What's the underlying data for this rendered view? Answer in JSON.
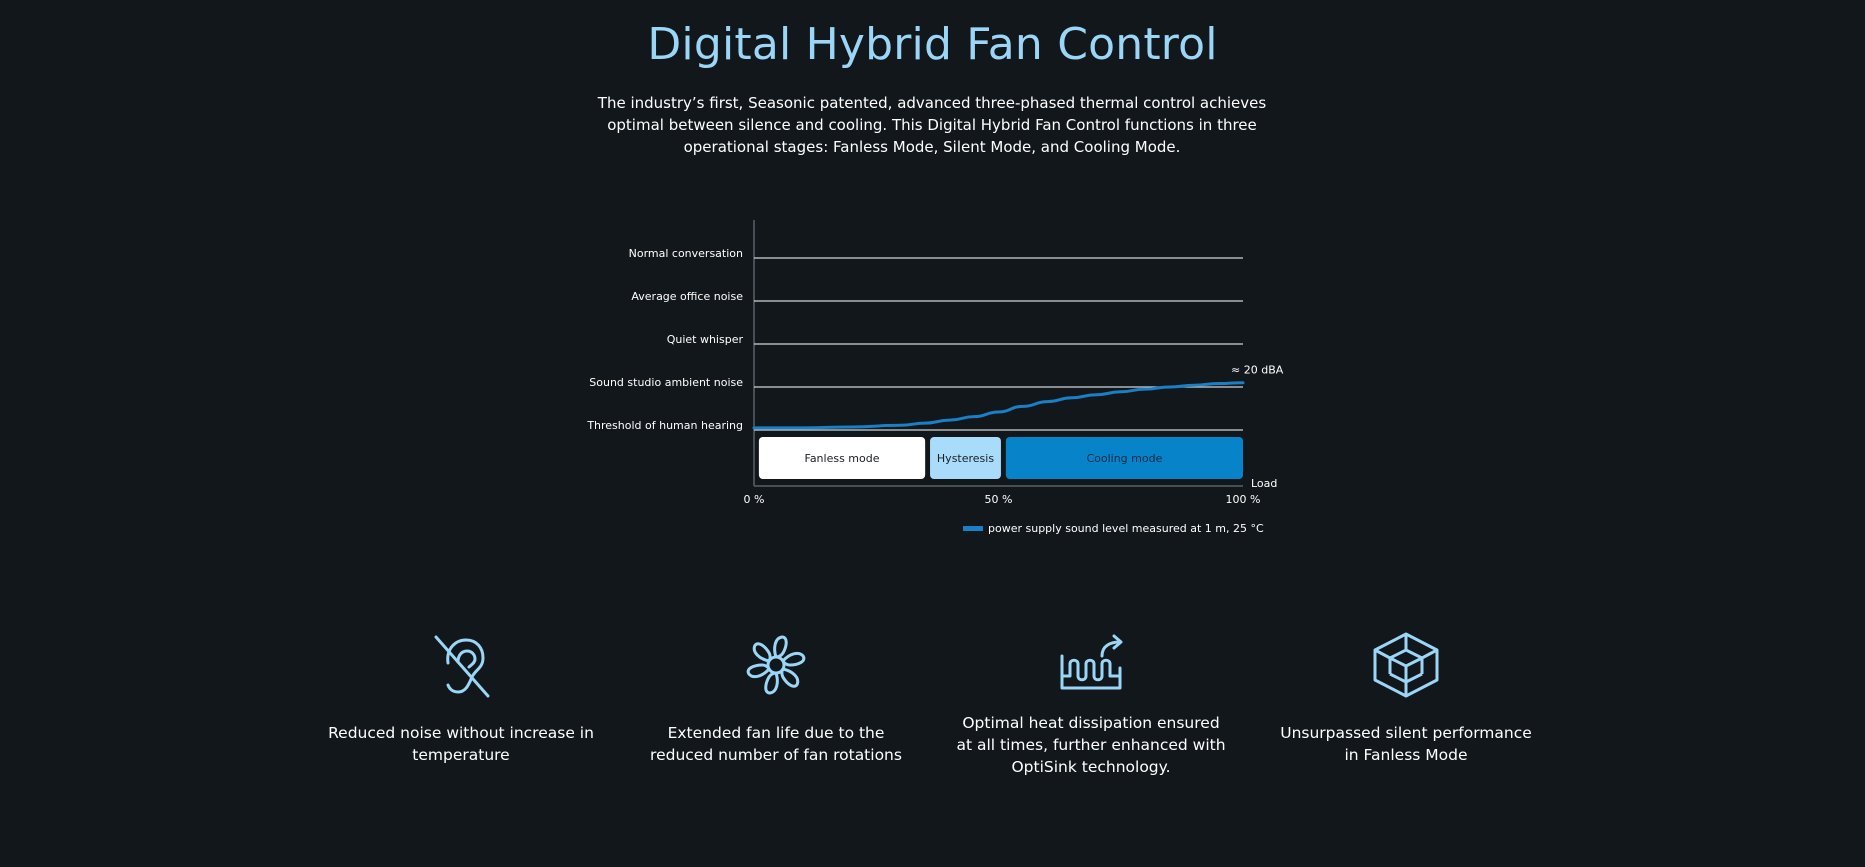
{
  "header": {
    "title": "Digital Hybrid Fan Control",
    "intro": "The industry’s first, Seasonic patented, advanced three-phased thermal control achieves optimal between silence and cooling. This Digital Hybrid Fan Control functions in three operational stages: Fanless Mode, Silent Mode, and Cooling Mode."
  },
  "chart_data": {
    "type": "line",
    "title": "",
    "xlabel": "Load",
    "ylabel": "",
    "x_ticks": [
      "0 %",
      "50 %",
      "100 %"
    ],
    "xlim": [
      0,
      100
    ],
    "y_levels": [
      "Threshold of human hearing",
      "Sound studio ambient noise",
      "Quiet whisper",
      "Average office noise",
      "Normal conversation"
    ],
    "series": [
      {
        "name": "power supply sound level measured at 1 m, 25 °C",
        "color": "#1a7fc4",
        "x": [
          0,
          10,
          20,
          30,
          35,
          40,
          45,
          50,
          55,
          60,
          65,
          70,
          75,
          80,
          85,
          90,
          95,
          100
        ],
        "y": [
          0.05,
          0.05,
          0.07,
          0.11,
          0.16,
          0.23,
          0.31,
          0.42,
          0.55,
          0.66,
          0.75,
          0.82,
          0.89,
          0.95,
          1.0,
          1.04,
          1.08,
          1.1
        ]
      }
    ],
    "end_annotation": "≈ 20 dBA",
    "modes": [
      {
        "label": "Fanless mode",
        "from": 1,
        "to": 35,
        "color": "#ffffff",
        "text_color": "#1b1f24"
      },
      {
        "label": "Hysteresis",
        "from": 36,
        "to": 50.5,
        "color": "#a9dcfa",
        "text_color": "#1b1f24"
      },
      {
        "label": "Cooling mode",
        "from": 51.5,
        "to": 100,
        "color": "#0683c9",
        "text_color": "#0d2a40"
      }
    ],
    "legend_position": "bottom-right",
    "grid": true
  },
  "features": [
    {
      "icon": "silent-ear-icon",
      "label": "Reduced noise without increase in temperature"
    },
    {
      "icon": "fan-icon",
      "label": "Extended fan life due to the reduced number of fan rotations"
    },
    {
      "icon": "heat-dissipation-icon",
      "label": "Optimal heat dissipation ensured at all times, further enhanced with OptiSink technology."
    },
    {
      "icon": "cube-icon",
      "label": "Unsurpassed silent performance in Fanless Mode"
    }
  ],
  "colors": {
    "background": "#12171c",
    "accent": "#9bd6f7",
    "line": "#1a7fc4"
  }
}
